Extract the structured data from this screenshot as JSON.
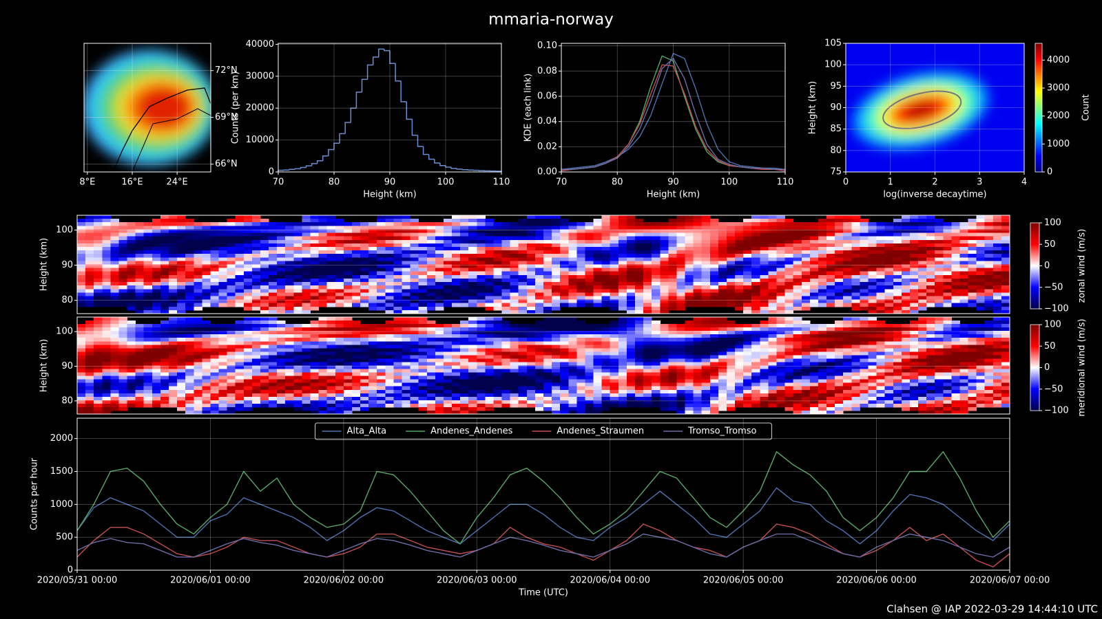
{
  "title": "mmaria-norway",
  "footer": "Clahsen @ IAP 2022-03-29 14:44:10 UTC",
  "chart_data": [
    {
      "type": "map",
      "xlim": [
        7.4,
        30
      ],
      "ylim": [
        65.5,
        73.75
      ],
      "xticks": [
        {
          "value": 8,
          "label": "8°E"
        },
        {
          "value": 16,
          "label": "16°E"
        },
        {
          "value": 24,
          "label": "24°E"
        }
      ],
      "yticks": [
        {
          "value": 66,
          "label": "66°N"
        },
        {
          "value": 69,
          "label": "69°N"
        },
        {
          "value": 72,
          "label": "72°N"
        }
      ],
      "ytick_side": "right",
      "grid": true
    },
    {
      "type": "histogram",
      "color": "#6a8fd0",
      "bins": [
        70,
        71,
        72,
        73,
        74,
        75,
        76,
        77,
        78,
        79,
        80,
        81,
        82,
        83,
        84,
        85,
        86,
        87,
        88,
        89,
        90,
        91,
        92,
        93,
        94,
        95,
        96,
        97,
        98,
        99,
        100,
        101,
        102,
        103,
        104,
        105,
        106,
        107,
        108,
        109,
        110
      ],
      "values": [
        500,
        600,
        800,
        1000,
        1400,
        1900,
        2600,
        3500,
        5000,
        7000,
        9000,
        12000,
        15500,
        20000,
        25000,
        29000,
        33500,
        36000,
        38500,
        38000,
        34000,
        28500,
        22000,
        16500,
        11500,
        8000,
        5500,
        4000,
        2800,
        2000,
        1500,
        1100,
        900,
        700,
        600,
        500,
        400,
        350,
        300,
        250
      ],
      "xlim": [
        70,
        110
      ],
      "ylim": [
        0,
        40300
      ],
      "xticks": [
        70,
        80,
        90,
        100,
        110
      ],
      "yticks": [
        0,
        10000,
        20000,
        30000,
        40000
      ],
      "xlabel": "Height (km)",
      "ylabel": "Counts (per km)",
      "grid": true
    },
    {
      "type": "line",
      "x": [
        70,
        72,
        74,
        76,
        78,
        80,
        82,
        84,
        86,
        88,
        90,
        92,
        94,
        96,
        98,
        100,
        102,
        104,
        106,
        108,
        110
      ],
      "series": [
        {
          "color": "#4c72b0",
          "values": [
            0.002,
            0.003,
            0.004,
            0.005,
            0.008,
            0.012,
            0.018,
            0.028,
            0.045,
            0.07,
            0.094,
            0.09,
            0.066,
            0.038,
            0.018,
            0.008,
            0.005,
            0.004,
            0.003,
            0.003,
            0.002
          ]
        },
        {
          "color": "#55a868",
          "values": [
            0.001,
            0.002,
            0.003,
            0.004,
            0.007,
            0.012,
            0.022,
            0.04,
            0.068,
            0.092,
            0.088,
            0.06,
            0.034,
            0.016,
            0.008,
            0.005,
            0.004,
            0.003,
            0.003,
            0.002,
            0.002
          ]
        },
        {
          "color": "#c44e52",
          "values": [
            0.001,
            0.002,
            0.003,
            0.004,
            0.007,
            0.012,
            0.022,
            0.038,
            0.062,
            0.085,
            0.084,
            0.062,
            0.036,
            0.018,
            0.009,
            0.005,
            0.004,
            0.003,
            0.002,
            0.002,
            0.001
          ]
        },
        {
          "color": "#6c6ca8",
          "values": [
            0.002,
            0.002,
            0.003,
            0.004,
            0.007,
            0.011,
            0.02,
            0.034,
            0.056,
            0.082,
            0.09,
            0.074,
            0.046,
            0.022,
            0.01,
            0.006,
            0.004,
            0.003,
            0.003,
            0.002,
            0.002
          ]
        }
      ],
      "xlim": [
        70,
        110
      ],
      "ylim": [
        0,
        0.102
      ],
      "xticks": [
        70,
        80,
        90,
        100,
        110
      ],
      "yticks": [
        {
          "value": 0,
          "label": "0.00"
        },
        0.02,
        0.04,
        0.06,
        0.08,
        {
          "value": 0.1,
          "label": "0.10"
        }
      ],
      "xlabel": "Height (km)",
      "ylabel": "KDE (each link)",
      "grid": true
    },
    {
      "type": "heatmap",
      "cmap": "jet",
      "xlim": [
        0,
        4
      ],
      "ylim": [
        75,
        105
      ],
      "xticks": [
        0,
        1,
        2,
        3,
        4
      ],
      "yticks": [
        75,
        80,
        85,
        90,
        95,
        100,
        105
      ],
      "xlabel": "log(inverse decaytime)",
      "ylabel": "Height (km)",
      "grid": true,
      "colorbar": {
        "label": "Count",
        "lim": [
          0,
          4600
        ],
        "ticks": [
          0,
          1000,
          2000,
          3000,
          4000
        ]
      }
    },
    {
      "type": "heatmap",
      "cmap": "seismic",
      "ylim": [
        76.2,
        104.2
      ],
      "yticks": [
        80,
        90,
        100
      ],
      "ylabel": "Height (km)",
      "grid": true,
      "colorbar": {
        "label": "zonal wind (m/s)",
        "lim": [
          -100,
          100
        ],
        "ticks": [
          {
            "value": -100,
            "label": "−100"
          },
          {
            "value": -50,
            "label": "−50"
          },
          0,
          50,
          100
        ]
      }
    },
    {
      "type": "heatmap",
      "cmap": "seismic",
      "ylim": [
        76.2,
        104.2
      ],
      "yticks": [
        80,
        90,
        100
      ],
      "ylabel": "Height (km)",
      "grid": true,
      "colorbar": {
        "label": "meridional wind (m/s)",
        "lim": [
          -100,
          100
        ],
        "ticks": [
          {
            "value": -100,
            "label": "−100"
          },
          {
            "value": -50,
            "label": "−50"
          },
          0,
          50,
          100
        ]
      }
    },
    {
      "type": "line",
      "x": [
        "2020/05/31 00:00",
        "2020/05/31 03:00",
        "2020/05/31 06:00",
        "2020/05/31 09:00",
        "2020/05/31 12:00",
        "2020/05/31 15:00",
        "2020/05/31 18:00",
        "2020/05/31 21:00",
        "2020/06/01 00:00",
        "2020/06/01 03:00",
        "2020/06/01 06:00",
        "2020/06/01 09:00",
        "2020/06/01 12:00",
        "2020/06/01 15:00",
        "2020/06/01 18:00",
        "2020/06/01 21:00",
        "2020/06/02 00:00",
        "2020/06/02 03:00",
        "2020/06/02 06:00",
        "2020/06/02 09:00",
        "2020/06/02 12:00",
        "2020/06/02 15:00",
        "2020/06/02 18:00",
        "2020/06/02 21:00",
        "2020/06/03 00:00",
        "2020/06/03 03:00",
        "2020/06/03 06:00",
        "2020/06/03 09:00",
        "2020/06/03 12:00",
        "2020/06/03 15:00",
        "2020/06/03 18:00",
        "2020/06/03 21:00",
        "2020/06/04 00:00",
        "2020/06/04 03:00",
        "2020/06/04 06:00",
        "2020/06/04 09:00",
        "2020/06/04 12:00",
        "2020/06/04 15:00",
        "2020/06/04 18:00",
        "2020/06/04 21:00",
        "2020/06/05 00:00",
        "2020/06/05 03:00",
        "2020/06/05 06:00",
        "2020/06/05 09:00",
        "2020/06/05 12:00",
        "2020/06/05 15:00",
        "2020/06/05 18:00",
        "2020/06/05 21:00",
        "2020/06/06 00:00",
        "2020/06/06 03:00",
        "2020/06/06 06:00",
        "2020/06/06 09:00",
        "2020/06/06 12:00",
        "2020/06/06 15:00",
        "2020/06/06 18:00",
        "2020/06/06 21:00",
        "2020/06/07 00:00"
      ],
      "series": [
        {
          "name": "Alta_Alta",
          "color": "#4c72b0",
          "values": [
            600,
            950,
            1100,
            1000,
            900,
            700,
            500,
            500,
            750,
            850,
            1100,
            1000,
            900,
            800,
            650,
            450,
            600,
            800,
            950,
            900,
            750,
            600,
            500,
            400,
            600,
            800,
            1000,
            1000,
            850,
            650,
            500,
            450,
            650,
            800,
            1000,
            1200,
            1000,
            800,
            550,
            500,
            700,
            900,
            1250,
            1050,
            1000,
            750,
            600,
            400,
            600,
            900,
            1150,
            1100,
            1000,
            800,
            600,
            450,
            700
          ]
        },
        {
          "name": "Andenes_Andenes",
          "color": "#55a868",
          "values": [
            600,
            1000,
            1500,
            1550,
            1350,
            1000,
            700,
            550,
            800,
            1000,
            1500,
            1200,
            1400,
            1000,
            800,
            650,
            700,
            900,
            1500,
            1450,
            1200,
            900,
            600,
            400,
            800,
            1100,
            1450,
            1550,
            1350,
            1100,
            800,
            550,
            700,
            900,
            1200,
            1500,
            1400,
            1100,
            800,
            650,
            900,
            1200,
            1800,
            1600,
            1450,
            1200,
            800,
            600,
            800,
            1100,
            1500,
            1500,
            1800,
            1400,
            900,
            500,
            750
          ]
        },
        {
          "name": "Andenes_Straumen",
          "color": "#c44e52",
          "values": [
            200,
            450,
            650,
            650,
            550,
            400,
            250,
            200,
            250,
            350,
            500,
            450,
            450,
            350,
            250,
            200,
            250,
            350,
            550,
            550,
            450,
            350,
            300,
            250,
            300,
            400,
            650,
            500,
            400,
            350,
            250,
            150,
            300,
            450,
            700,
            600,
            450,
            350,
            300,
            200,
            350,
            450,
            700,
            650,
            550,
            400,
            250,
            200,
            300,
            450,
            650,
            450,
            550,
            350,
            150,
            50,
            250
          ]
        },
        {
          "name": "Tromso_Tromso",
          "color": "#6c6ca8",
          "values": [
            300,
            420,
            480,
            420,
            400,
            300,
            200,
            200,
            300,
            400,
            480,
            420,
            380,
            300,
            250,
            200,
            300,
            400,
            480,
            450,
            380,
            300,
            250,
            200,
            300,
            400,
            500,
            450,
            380,
            300,
            250,
            200,
            300,
            400,
            550,
            500,
            450,
            350,
            250,
            200,
            350,
            450,
            550,
            550,
            450,
            350,
            250,
            200,
            350,
            450,
            550,
            500,
            450,
            350,
            250,
            200,
            350
          ]
        }
      ],
      "xlim": [
        "2020/05/31 00:00",
        "2020/06/07 00:00"
      ],
      "xticks": [
        "2020/05/31 00:00",
        "2020/06/01 00:00",
        "2020/06/02 00:00",
        "2020/06/03 00:00",
        "2020/06/04 00:00",
        "2020/06/05 00:00",
        "2020/06/06 00:00",
        "2020/06/07 00:00"
      ],
      "ylim": [
        0,
        2310
      ],
      "yticks": [
        0,
        500,
        1000,
        1500,
        2000
      ],
      "xlabel": "Time (UTC)",
      "ylabel": "Counts per hour",
      "legend": "upper center",
      "grid": true
    }
  ]
}
